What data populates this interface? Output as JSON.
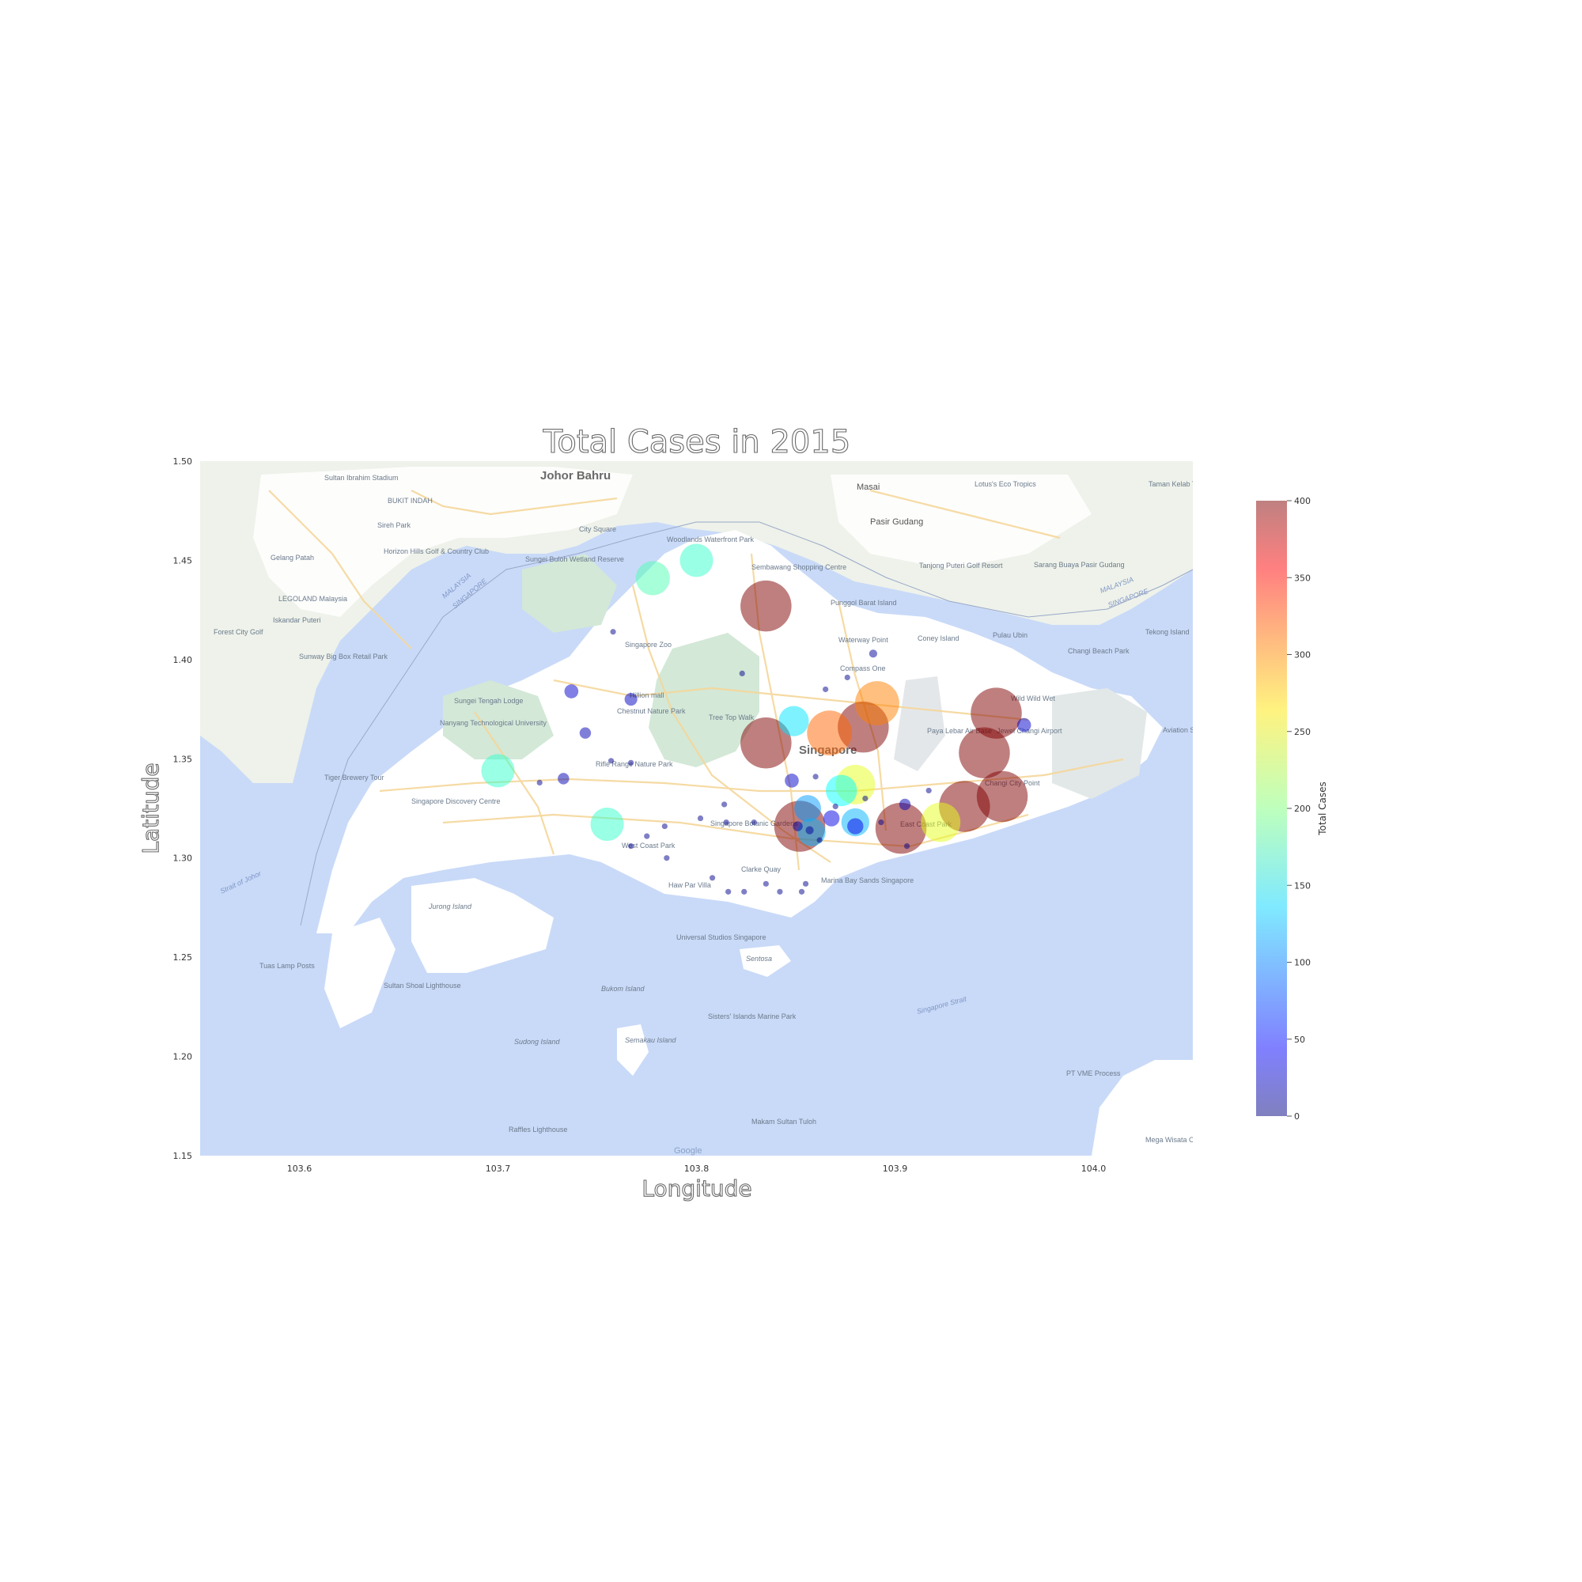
{
  "chart_data": {
    "type": "scatter",
    "title": "Total Cases in 2015",
    "xlabel": "Longitude",
    "ylabel": "Latitude",
    "xlim": [
      103.55,
      104.05
    ],
    "ylim": [
      1.15,
      1.5
    ],
    "xticks": [
      "103.6",
      "103.7",
      "103.8",
      "103.9",
      "104.0"
    ],
    "xtick_values": [
      103.6,
      103.7,
      103.8,
      103.9,
      104.0
    ],
    "yticks": [
      "1.15",
      "1.20",
      "1.25",
      "1.30",
      "1.35",
      "1.40",
      "1.45",
      "1.50"
    ],
    "ytick_values": [
      1.15,
      1.2,
      1.25,
      1.3,
      1.35,
      1.4,
      1.45,
      1.5
    ],
    "colorbar": {
      "label": "Total Cases",
      "min": 0,
      "max": 400,
      "ticks": [
        "0",
        "50",
        "100",
        "150",
        "200",
        "250",
        "300",
        "350",
        "400"
      ],
      "tick_values": [
        0,
        50,
        100,
        150,
        200,
        250,
        300,
        350,
        400
      ],
      "colormap": "jet"
    },
    "background": "Google Maps basemap of Singapore",
    "points": [
      {
        "lon": 103.835,
        "lat": 1.358,
        "cases": 400
      },
      {
        "lon": 103.835,
        "lat": 1.427,
        "cases": 400
      },
      {
        "lon": 103.884,
        "lat": 1.366,
        "cases": 400
      },
      {
        "lon": 103.951,
        "lat": 1.373,
        "cases": 400
      },
      {
        "lon": 103.945,
        "lat": 1.353,
        "cases": 400
      },
      {
        "lon": 103.935,
        "lat": 1.326,
        "cases": 400
      },
      {
        "lon": 103.954,
        "lat": 1.331,
        "cases": 400
      },
      {
        "lon": 103.903,
        "lat": 1.315,
        "cases": 400
      },
      {
        "lon": 103.852,
        "lat": 1.316,
        "cases": 400
      },
      {
        "lon": 103.891,
        "lat": 1.378,
        "cases": 300
      },
      {
        "lon": 103.867,
        "lat": 1.363,
        "cases": 310
      },
      {
        "lon": 103.923,
        "lat": 1.318,
        "cases": 240
      },
      {
        "lon": 103.88,
        "lat": 1.337,
        "cases": 240
      },
      {
        "lon": 103.8,
        "lat": 1.45,
        "cases": 170
      },
      {
        "lon": 103.778,
        "lat": 1.441,
        "cases": 180
      },
      {
        "lon": 103.7,
        "lat": 1.344,
        "cases": 170
      },
      {
        "lon": 103.755,
        "lat": 1.317,
        "cases": 170
      },
      {
        "lon": 103.873,
        "lat": 1.334,
        "cases": 150
      },
      {
        "lon": 103.849,
        "lat": 1.369,
        "cases": 140
      },
      {
        "lon": 103.856,
        "lat": 1.325,
        "cases": 110
      },
      {
        "lon": 103.88,
        "lat": 1.318,
        "cases": 120
      },
      {
        "lon": 103.858,
        "lat": 1.313,
        "cases": 120
      },
      {
        "lon": 103.868,
        "lat": 1.32,
        "cases": 40
      },
      {
        "lon": 103.88,
        "lat": 1.316,
        "cases": 40
      },
      {
        "lon": 103.848,
        "lat": 1.339,
        "cases": 30
      },
      {
        "lon": 103.737,
        "lat": 1.384,
        "cases": 30
      },
      {
        "lon": 103.767,
        "lat": 1.38,
        "cases": 25
      },
      {
        "lon": 103.744,
        "lat": 1.363,
        "cases": 20
      },
      {
        "lon": 103.733,
        "lat": 1.34,
        "cases": 20
      },
      {
        "lon": 103.965,
        "lat": 1.367,
        "cases": 30
      },
      {
        "lon": 103.905,
        "lat": 1.327,
        "cases": 20
      },
      {
        "lon": 103.889,
        "lat": 1.403,
        "cases": 10
      },
      {
        "lon": 103.851,
        "lat": 1.316,
        "cases": 15
      },
      {
        "lon": 103.857,
        "lat": 1.314,
        "cases": 10
      },
      {
        "lon": 103.876,
        "lat": 1.391,
        "cases": 5
      },
      {
        "lon": 103.865,
        "lat": 1.385,
        "cases": 5
      },
      {
        "lon": 103.86,
        "lat": 1.341,
        "cases": 5
      },
      {
        "lon": 103.87,
        "lat": 1.326,
        "cases": 5
      },
      {
        "lon": 103.885,
        "lat": 1.33,
        "cases": 5
      },
      {
        "lon": 103.917,
        "lat": 1.334,
        "cases": 5
      },
      {
        "lon": 103.893,
        "lat": 1.318,
        "cases": 5
      },
      {
        "lon": 103.862,
        "lat": 1.309,
        "cases": 5
      },
      {
        "lon": 103.829,
        "lat": 1.318,
        "cases": 5
      },
      {
        "lon": 103.815,
        "lat": 1.318,
        "cases": 5
      },
      {
        "lon": 103.802,
        "lat": 1.32,
        "cases": 5
      },
      {
        "lon": 103.784,
        "lat": 1.316,
        "cases": 5
      },
      {
        "lon": 103.775,
        "lat": 1.311,
        "cases": 5
      },
      {
        "lon": 103.767,
        "lat": 1.306,
        "cases": 5
      },
      {
        "lon": 103.785,
        "lat": 1.3,
        "cases": 5
      },
      {
        "lon": 103.808,
        "lat": 1.29,
        "cases": 5
      },
      {
        "lon": 103.816,
        "lat": 1.283,
        "cases": 5
      },
      {
        "lon": 103.824,
        "lat": 1.283,
        "cases": 5
      },
      {
        "lon": 103.835,
        "lat": 1.287,
        "cases": 5
      },
      {
        "lon": 103.842,
        "lat": 1.283,
        "cases": 5
      },
      {
        "lon": 103.853,
        "lat": 1.283,
        "cases": 5
      },
      {
        "lon": 103.855,
        "lat": 1.287,
        "cases": 5
      },
      {
        "lon": 103.767,
        "lat": 1.348,
        "cases": 5
      },
      {
        "lon": 103.757,
        "lat": 1.349,
        "cases": 5
      },
      {
        "lon": 103.721,
        "lat": 1.338,
        "cases": 5
      },
      {
        "lon": 103.758,
        "lat": 1.414,
        "cases": 5
      },
      {
        "lon": 103.823,
        "lat": 1.393,
        "cases": 5
      },
      {
        "lon": 103.906,
        "lat": 1.306,
        "cases": 5
      },
      {
        "lon": 103.814,
        "lat": 1.327,
        "cases": 5
      }
    ]
  },
  "map_labels": {
    "city_jb": "Johor Bahru",
    "city_sg": "Singapore",
    "pasir_gudang": "Pasir Gudang",
    "masai": "Masai",
    "sultan_stadium": "Sultan Ibrahim Stadium",
    "bukit_indah": "BUKIT INDAH",
    "gelang_patah": "Gelang Patah",
    "legoland": "LEGOLAND Malaysia",
    "iskandar": "Iskandar Puteri",
    "forest_city": "Forest City Golf",
    "horizon_hills": "Horizon Hills Golf & Country Club",
    "sireh_park": "Sireh Park",
    "sunway": "Sunway Big Box Retail Park",
    "sungei_buloh": "Sungei Buloh Wetland Reserve",
    "woodlands_park": "Woodlands Waterfront Park",
    "sembawang": "Sembawang Shopping Centre",
    "city_square": "City Square",
    "punggol": "Punggol Barat Island",
    "waterway": "Waterway Point",
    "coney": "Coney Island",
    "pulau_ubin": "Pulau Ubin",
    "changi_beach": "Changi Beach Park",
    "tekong": "Tekong Island",
    "jewel": "Jewel Changi Airport",
    "wild_wild_wet": "Wild Wild Wet",
    "changi_city": "Changi City Point",
    "aviation": "Aviation Staging",
    "paya_lebar": "Paya Lebar Air Base",
    "compass_one": "Compass One",
    "hillion": "Hillion mall",
    "chestnut": "Chestnut Nature Park",
    "tree_top": "Tree Top Walk",
    "singapore_zoo": "Singapore Zoo",
    "sungei_tengah": "Sungei Tengah Lodge",
    "ntu": "Nanyang Technological University",
    "rifle_range": "Rifle Range Nature Park",
    "botanic": "Singapore Botanic Gardens",
    "tiger_brewery": "Tiger Brewery Tour",
    "discovery": "Singapore Discovery Centre",
    "jurong_island": "Jurong Island",
    "west_coast": "West Coast Park",
    "haw_par": "Haw Par Villa",
    "clarke_quay": "Clarke Quay",
    "marina_bay": "Marina Bay Sands Singapore",
    "east_coast": "East Coast Park",
    "uss": "Universal Studios Singapore",
    "sentosa": "Sentosa",
    "bukom": "Bukom Island",
    "semakau": "Semakau Island",
    "sudong": "Sudong Island",
    "sisters": "Sisters' Islands Marine Park",
    "tuas_lamp": "Tuas Lamp Posts",
    "sultan_shoal": "Sultan Shoal Lighthouse",
    "raffles": "Raffles Lighthouse",
    "makam": "Makam Sultan Tuloh",
    "pt_vme": "PT VME Process",
    "mega_wisata": "Mega Wisata Ocarina Batam",
    "tanjong_puteri": "Tanjong Puteri Golf Resort",
    "sarang_buaya": "Sarang Buaya Pasir Gudang",
    "lotus": "Lotus's Eco Tropics",
    "taman_kelab": "Taman Kelab Tehat Kampung",
    "strait_johor": "Strait of Johor",
    "singapore_strait": "Singapore Strait",
    "malaysia_w": "MALAYSIA",
    "singapore_w": "SINGAPORE",
    "google": "Google"
  },
  "colors": {
    "sea": "#c9daf8",
    "land": "#ffffff",
    "malaysia_land": "#eef2ea",
    "green": "#d3e8d7",
    "road": "#f5d79a"
  }
}
